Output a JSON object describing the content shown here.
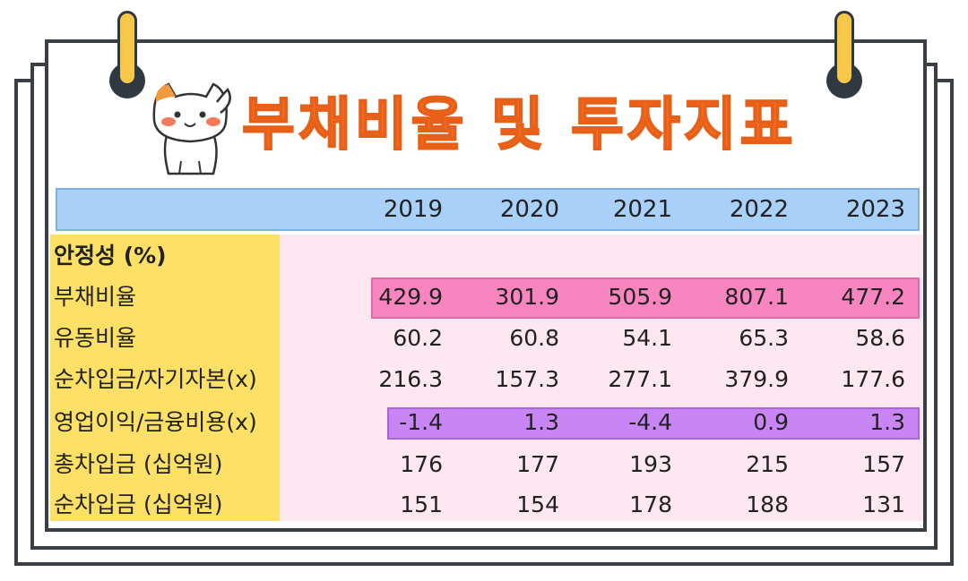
{
  "title": "부채비율 및 투자지표",
  "years": [
    "2019",
    "2020",
    "2021",
    "2022",
    "2023"
  ],
  "section_label": "안정성 (%)",
  "rows": [
    {
      "label": "부채비율",
      "values": [
        "429.9",
        "301.9",
        "505.9",
        "807.1",
        "477.2"
      ]
    },
    {
      "label": "유동비율",
      "values": [
        "60.2",
        "60.8",
        "54.1",
        "65.3",
        "58.6"
      ]
    },
    {
      "label": "순차입금/자기자본(x)",
      "values": [
        "216.3",
        "157.3",
        "277.1",
        "379.9",
        "177.6"
      ]
    },
    {
      "label": "영업이익/금융비용(x)",
      "values": [
        "-1.4",
        "1.3",
        "-4.4",
        "0.9",
        "1.3"
      ]
    },
    {
      "label": "총차입금 (십억원)",
      "values": [
        "176",
        "177",
        "193",
        "215",
        "157"
      ]
    },
    {
      "label": "순차입금 (십억원)",
      "values": [
        "151",
        "154",
        "178",
        "188",
        "131"
      ]
    }
  ],
  "colors": {
    "title": "#f4702a",
    "header": "#a8d0f8",
    "label_column": "#fde066",
    "data_background": "#fde8f2",
    "highlight_debt_ratio": "#f785bf",
    "highlight_interest_coverage": "#c886f5"
  },
  "icons": {
    "mascot": "cat-mascot-icon",
    "binder": "binder-clip-icon"
  }
}
